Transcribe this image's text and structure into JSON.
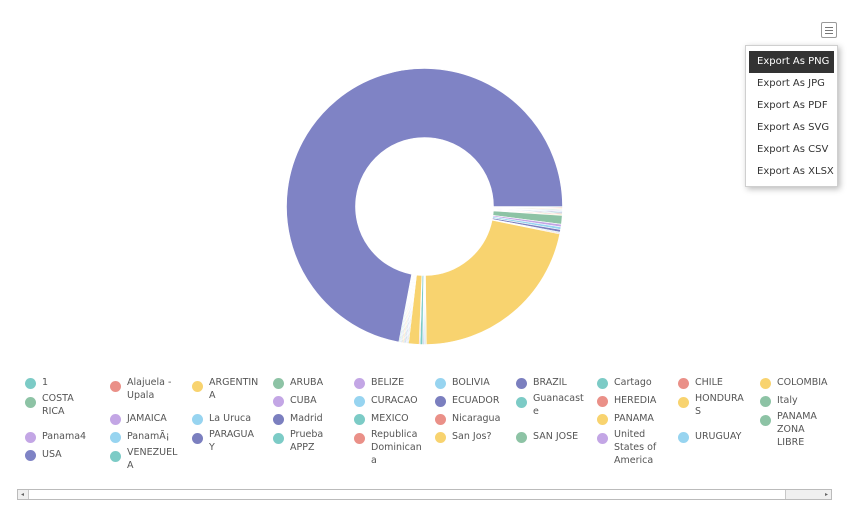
{
  "export_menu": {
    "icon": "hamburger-menu-icon",
    "items": [
      "Export As PNG",
      "Export As JPG",
      "Export As PDF",
      "Export As SVG",
      "Export As CSV",
      "Export As XLSX"
    ],
    "active_index": 0
  },
  "scrollbar": {
    "left_arrow": "◂",
    "right_arrow": "▸"
  },
  "colors": {
    "usa": "#7f83c5",
    "honduras": "#f8d36f",
    "costa_rica": "#8dc3a5",
    "cuba": "#c3a6e5",
    "bolivia": "#97d4f0",
    "cartago": "#7ccbc6",
    "chile": "#ea9088",
    "ecuador": "#7b7fbf"
  },
  "chart_data": {
    "type": "pie",
    "donut": true,
    "title": "",
    "legend_position": "bottom",
    "series": [
      {
        "label": "1",
        "value": 0.1,
        "color": "#7ccbc6"
      },
      {
        "label": "Alajuela - Upala",
        "value": 0.1,
        "color": "#ea9088"
      },
      {
        "label": "ARGENTINA",
        "value": 0.1,
        "color": "#f8d36f"
      },
      {
        "label": "ARUBA",
        "value": 0.1,
        "color": "#8dc3a5"
      },
      {
        "label": "BELIZE",
        "value": 0.1,
        "color": "#c3a6e5"
      },
      {
        "label": "BOLIVIA",
        "value": 0.1,
        "color": "#97d4f0"
      },
      {
        "label": "BRAZIL",
        "value": 0.1,
        "color": "#7b7fbf"
      },
      {
        "label": "Cartago",
        "value": 0.1,
        "color": "#7ccbc6"
      },
      {
        "label": "CHILE",
        "value": 0.1,
        "color": "#ea9088"
      },
      {
        "label": "COLOMBIA",
        "value": 0.1,
        "color": "#f8d36f"
      },
      {
        "label": "COSTA RICA",
        "value": 1.0,
        "color": "#8dc3a5"
      },
      {
        "label": "CUBA",
        "value": 0.3,
        "color": "#c3a6e5"
      },
      {
        "label": "CURACAO",
        "value": 0.3,
        "color": "#97d4f0"
      },
      {
        "label": "ECUADOR",
        "value": 0.3,
        "color": "#7b7fbf"
      },
      {
        "label": "Guanacaste",
        "value": 0.1,
        "color": "#7ccbc6"
      },
      {
        "label": "HEREDIA",
        "value": 0.1,
        "color": "#ea9088"
      },
      {
        "label": "HONDURAS",
        "value": 21.0,
        "color": "#f8d36f"
      },
      {
        "label": "Italy",
        "value": 0.1,
        "color": "#8dc3a5"
      },
      {
        "label": "JAMAICA",
        "value": 0.1,
        "color": "#c3a6e5"
      },
      {
        "label": "La Uruca",
        "value": 0.1,
        "color": "#97d4f0"
      },
      {
        "label": "Madrid",
        "value": 0.1,
        "color": "#7b7fbf"
      },
      {
        "label": "MEXICO",
        "value": 0.3,
        "color": "#7ccbc6"
      },
      {
        "label": "Nicaragua",
        "value": 0.1,
        "color": "#ea9088"
      },
      {
        "label": "PANAMA",
        "value": 1.2,
        "color": "#f8d36f"
      },
      {
        "label": "PANAMA ZONA LIBRE",
        "value": 0.1,
        "color": "#8dc3a5"
      },
      {
        "label": "Panama4",
        "value": 0.1,
        "color": "#c3a6e5"
      },
      {
        "label": "PanamÃ¡",
        "value": 0.1,
        "color": "#97d4f0"
      },
      {
        "label": "PARAGUAY",
        "value": 0.1,
        "color": "#7b7fbf"
      },
      {
        "label": "Prueba APPZ",
        "value": 0.1,
        "color": "#7ccbc6"
      },
      {
        "label": "Republica Dominicana",
        "value": 0.1,
        "color": "#ea9088"
      },
      {
        "label": "San Jos?",
        "value": 0.1,
        "color": "#f8d36f"
      },
      {
        "label": "SAN JOSE",
        "value": 0.1,
        "color": "#8dc3a5"
      },
      {
        "label": "United States of America",
        "value": 0.1,
        "color": "#c3a6e5"
      },
      {
        "label": "URUGUAY",
        "value": 0.1,
        "color": "#97d4f0"
      },
      {
        "label": "USA",
        "value": 70.0,
        "color": "#7f83c5"
      },
      {
        "label": "VENEZUELA",
        "value": 0.1,
        "color": "#7ccbc6"
      }
    ]
  }
}
